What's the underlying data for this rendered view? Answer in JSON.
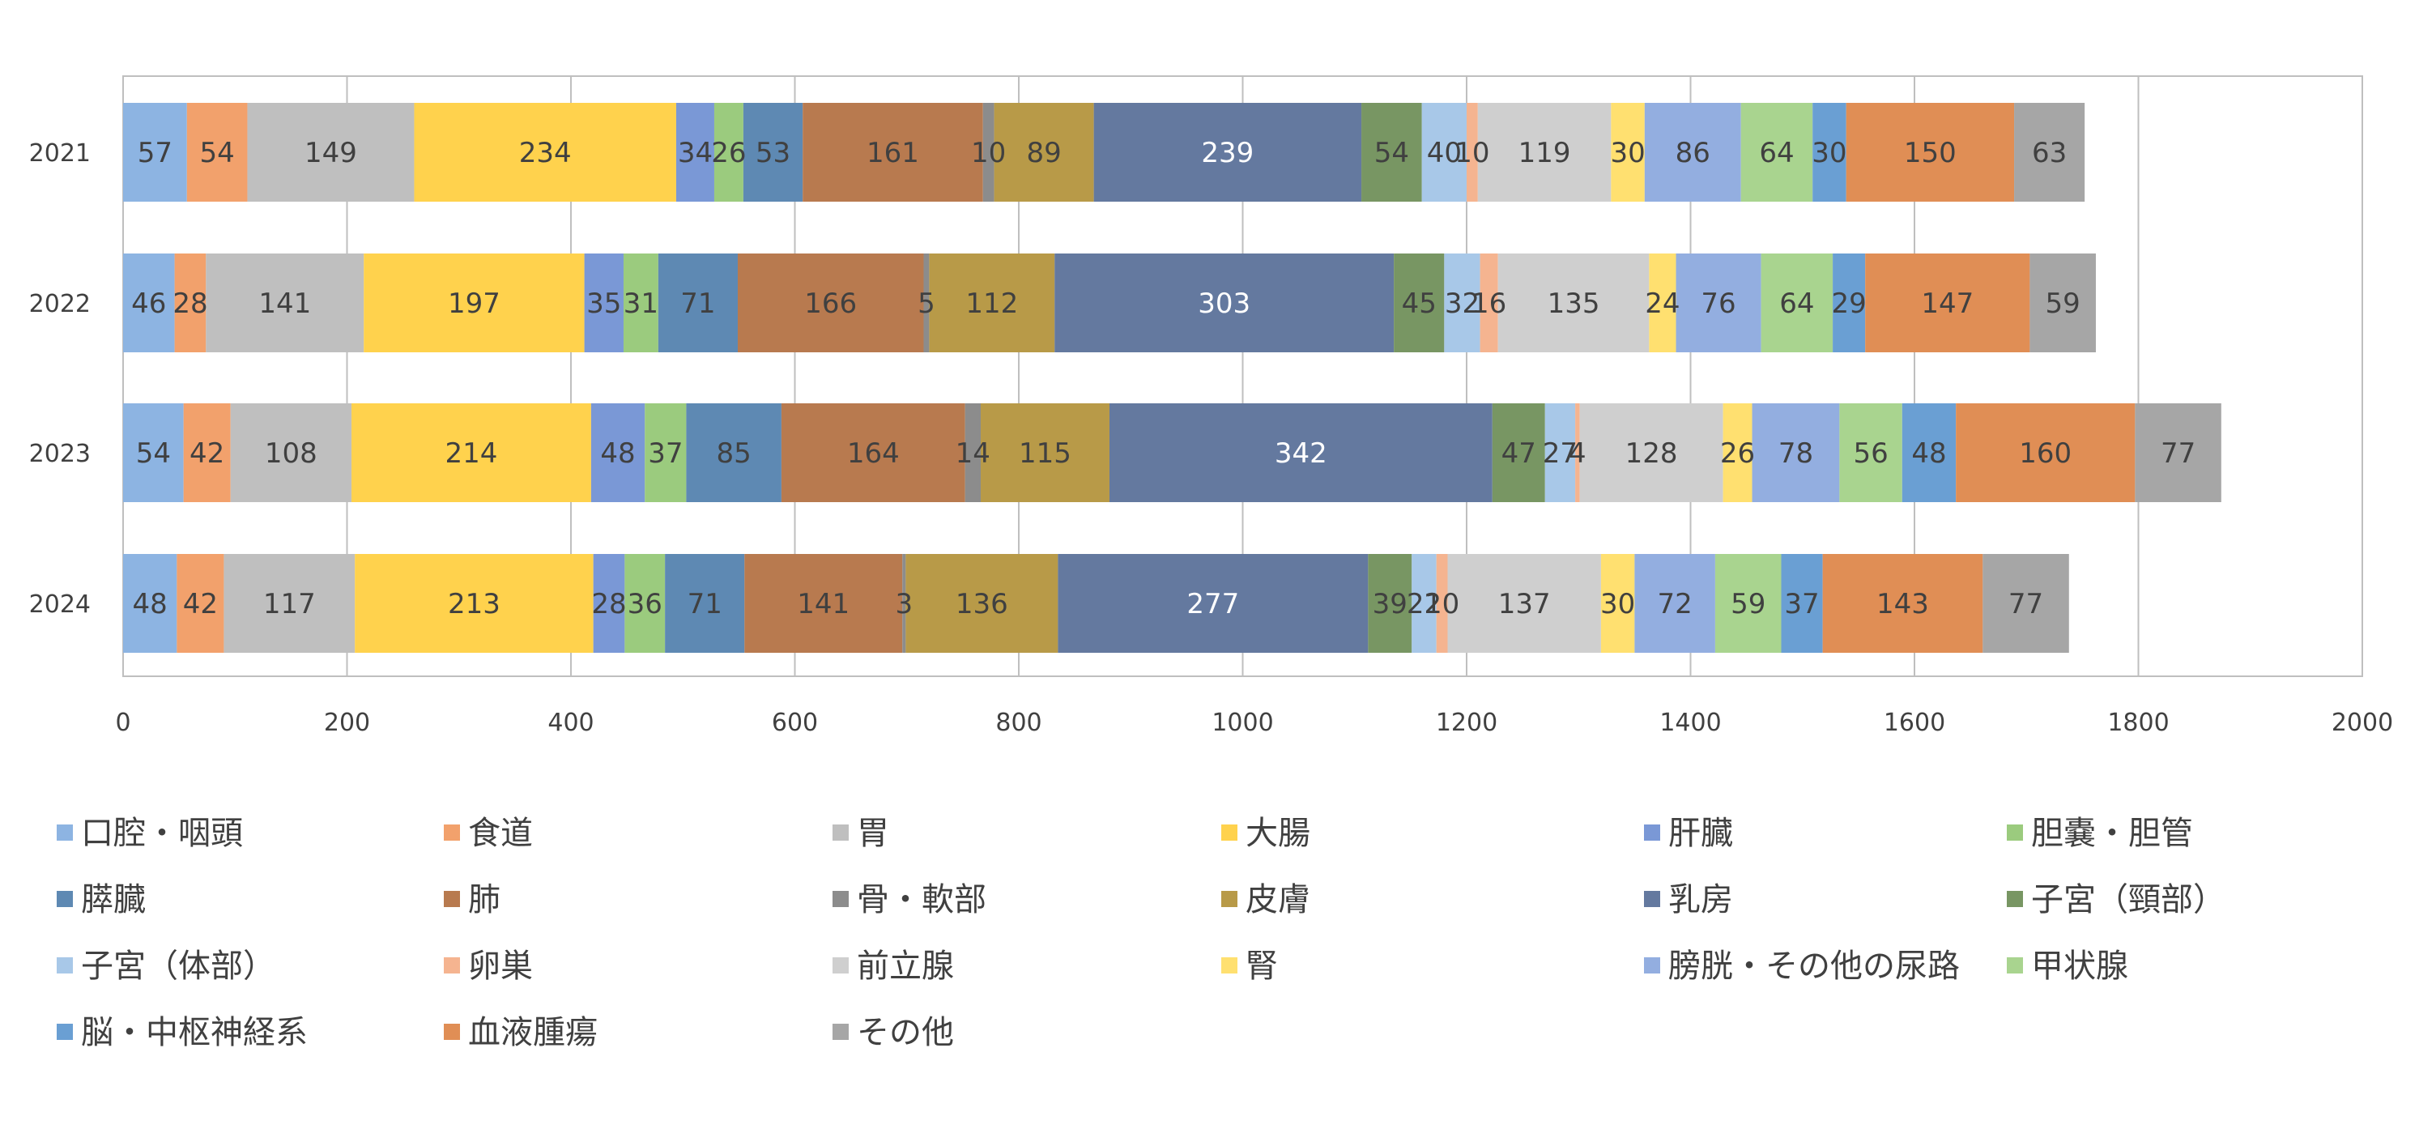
{
  "chart_data": {
    "type": "bar",
    "orientation": "horizontal",
    "stacked": true,
    "title": "",
    "xlabel": "",
    "ylabel": "",
    "xlim": [
      0,
      2000
    ],
    "x_ticks": [
      0,
      200,
      400,
      600,
      800,
      1000,
      1200,
      1400,
      1600,
      1800,
      2000
    ],
    "grid": true,
    "legend_position": "bottom",
    "categories": [
      "2021",
      "2022",
      "2023",
      "2024"
    ],
    "series": [
      {
        "name": "口腔・咽頭",
        "color": "#8DB4E2",
        "values": [
          57,
          46,
          54,
          48
        ]
      },
      {
        "name": "食道",
        "color": "#F2A16C",
        "values": [
          54,
          28,
          42,
          42
        ]
      },
      {
        "name": "胃",
        "color": "#BFBFBF",
        "values": [
          149,
          141,
          108,
          117
        ]
      },
      {
        "name": "大腸",
        "color": "#FFD24D",
        "values": [
          234,
          197,
          214,
          213
        ]
      },
      {
        "name": "肝臓",
        "color": "#7A98D6",
        "values": [
          34,
          35,
          48,
          28
        ]
      },
      {
        "name": "胆嚢・胆管",
        "color": "#9BCB7E",
        "values": [
          26,
          31,
          37,
          36
        ]
      },
      {
        "name": "膵臓",
        "color": "#5E89B3",
        "values": [
          53,
          71,
          85,
          71
        ]
      },
      {
        "name": "肺",
        "color": "#B87A4F",
        "values": [
          161,
          166,
          164,
          141
        ]
      },
      {
        "name": "骨・軟部",
        "color": "#8C8C8C",
        "values": [
          10,
          5,
          14,
          3
        ]
      },
      {
        "name": "皮膚",
        "color": "#B89A48",
        "values": [
          89,
          112,
          115,
          136
        ]
      },
      {
        "name": "乳房",
        "color": "#64799F",
        "values": [
          239,
          303,
          342,
          277
        ]
      },
      {
        "name": "子宮（頸部）",
        "color": "#789663",
        "values": [
          54,
          45,
          47,
          39
        ]
      },
      {
        "name": "子宮（体部）",
        "color": "#A8C8E8",
        "values": [
          40,
          32,
          27,
          22
        ]
      },
      {
        "name": "卵巣",
        "color": "#F5B490",
        "values": [
          10,
          16,
          4,
          10
        ]
      },
      {
        "name": "前立腺",
        "color": "#CFCFCF",
        "values": [
          119,
          135,
          128,
          137
        ]
      },
      {
        "name": "腎",
        "color": "#FFE070",
        "values": [
          30,
          24,
          26,
          30
        ]
      },
      {
        "name": "膀胱・その他の尿路",
        "color": "#93AEE0",
        "values": [
          86,
          76,
          78,
          72
        ]
      },
      {
        "name": "甲状腺",
        "color": "#A9D48F",
        "values": [
          64,
          64,
          56,
          59
        ]
      },
      {
        "name": "脳・中枢神経系",
        "color": "#6A9FD3",
        "values": [
          30,
          29,
          48,
          37
        ]
      },
      {
        "name": "血液腫瘍",
        "color": "#E08E55",
        "values": [
          150,
          147,
          160,
          143
        ]
      },
      {
        "name": "その他",
        "color": "#A6A6A6",
        "values": [
          63,
          59,
          77,
          77
        ]
      }
    ]
  }
}
